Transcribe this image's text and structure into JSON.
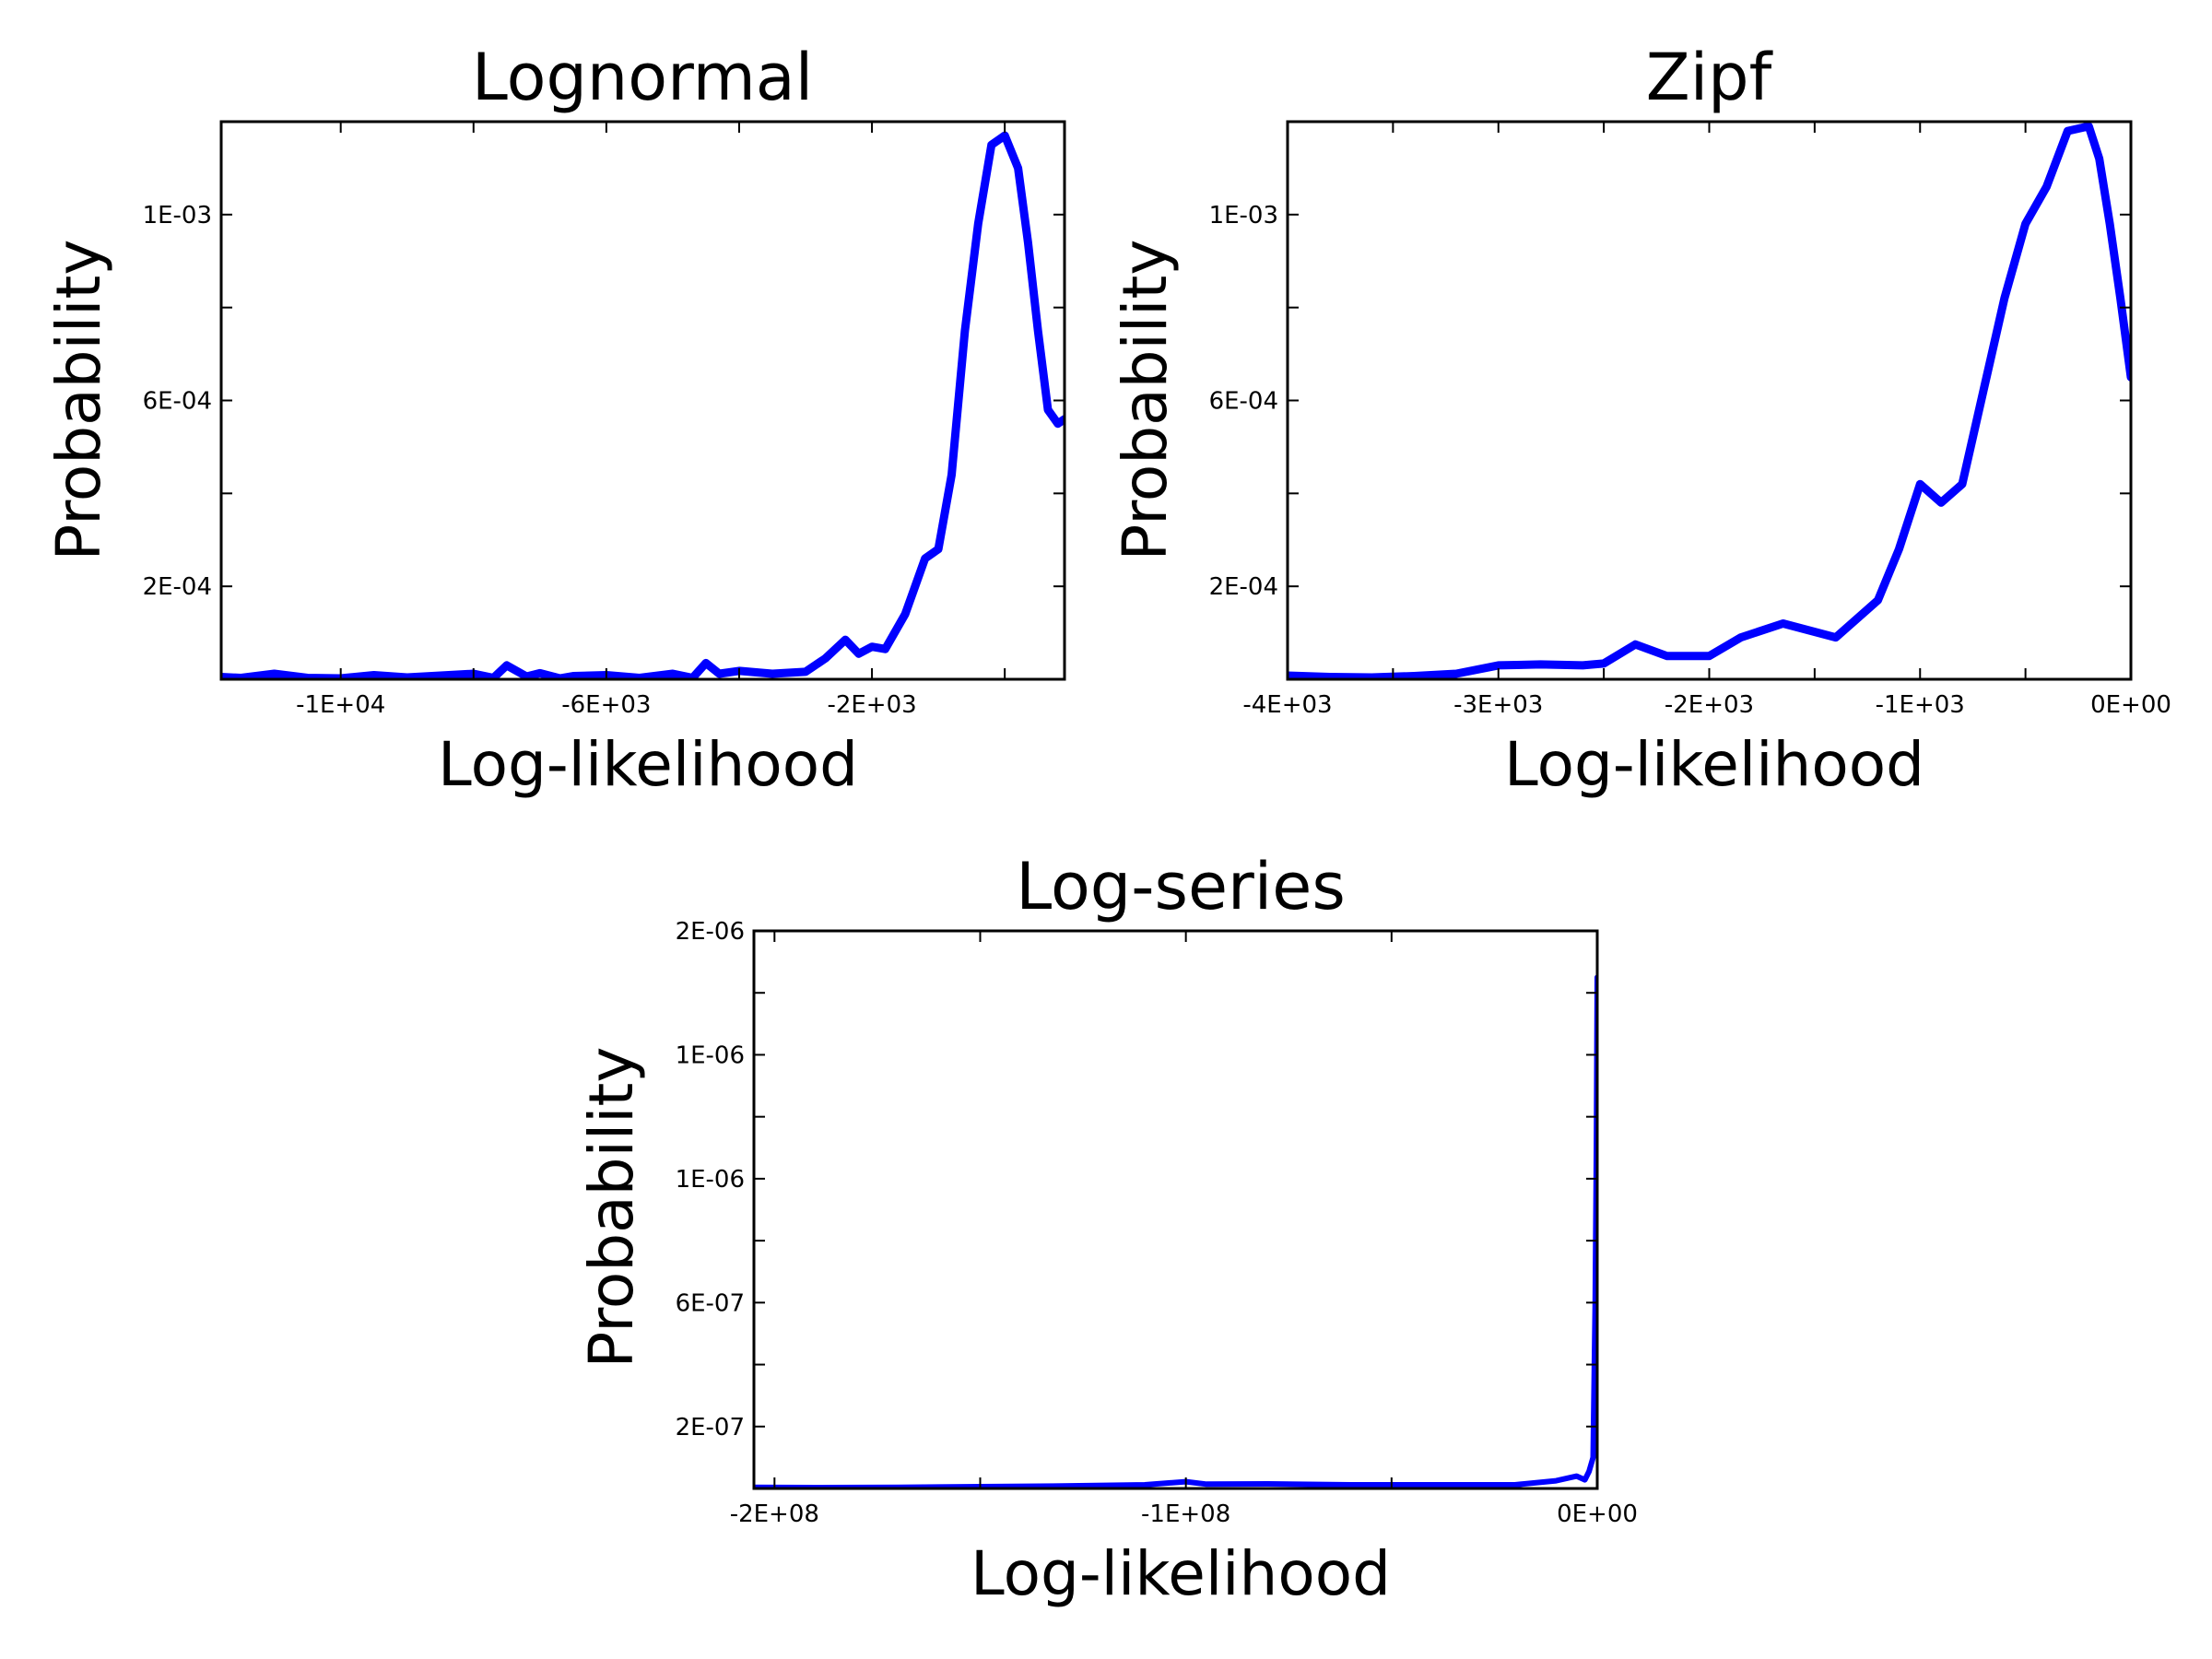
{
  "chart_data": [
    {
      "type": "line",
      "title": "Lognormal",
      "xlabel": "Log-likelihood",
      "ylabel": "Probability",
      "xlim": [
        -11800,
        900
      ],
      "ylim": [
        0,
        0.0012
      ],
      "grid": false,
      "legend": "none",
      "xticks": [
        {
          "value": -10000,
          "label": "-1E+04"
        },
        {
          "value": -6000,
          "label": "-6E+03"
        },
        {
          "value": -2000,
          "label": "-2E+03"
        }
      ],
      "xminor": [
        -12000,
        -8000,
        -4000,
        0
      ],
      "yticks": [
        {
          "value": 0.0002,
          "label": "2E-04"
        },
        {
          "value": 0.0006,
          "label": "6E-04"
        },
        {
          "value": 0.001,
          "label": "1E-03"
        }
      ],
      "yminor": [
        0.0004,
        0.0008
      ],
      "color": "#0000ff",
      "series": [
        {
          "x": [
            -11800,
            -11500,
            -11000,
            -10500,
            -10000,
            -9500,
            -9000,
            -8500,
            -8000,
            -7700,
            -7500,
            -7200,
            -7000,
            -6700,
            -6500,
            -6000,
            -5500,
            -5000,
            -4700,
            -4500,
            -4300,
            -4000,
            -3500,
            -3000,
            -2700,
            -2400,
            -2200,
            -2000,
            -1800,
            -1500,
            -1200,
            -1000,
            -800,
            -600,
            -400,
            -200,
            0,
            200,
            350,
            500,
            650,
            800,
            900
          ],
          "y": [
            5e-06,
            3e-06,
            1.2e-05,
            3e-06,
            2e-06,
            9e-06,
            4e-06,
            8e-06,
            1.2e-05,
            3e-06,
            3e-05,
            6e-06,
            1.3e-05,
            2e-06,
            7e-06,
            9e-06,
            3e-06,
            1.2e-05,
            3e-06,
            3.5e-05,
            1.2e-05,
            1.8e-05,
            1.2e-05,
            1.6e-05,
            4.5e-05,
            8.5e-05,
            5.5e-05,
            7e-05,
            6.5e-05,
            0.00014,
            0.00026,
            0.00028,
            0.00044,
            0.00075,
            0.00098,
            0.00115,
            0.00117,
            0.0011,
            0.00094,
            0.00075,
            0.00058,
            0.00055,
            0.00056
          ]
        }
      ]
    },
    {
      "type": "line",
      "title": "Zipf",
      "xlabel": "Log-likelihood",
      "ylabel": "Probability",
      "xlim": [
        -4000,
        0
      ],
      "ylim": [
        0,
        0.0012
      ],
      "grid": false,
      "legend": "none",
      "xticks": [
        {
          "value": -4000,
          "label": "-4E+03"
        },
        {
          "value": -3000,
          "label": "-3E+03"
        },
        {
          "value": -2000,
          "label": "-2E+03"
        },
        {
          "value": -1000,
          "label": "-1E+03"
        },
        {
          "value": 0,
          "label": "0E+00"
        }
      ],
      "xminor": [
        -3500,
        -2500,
        -1500,
        -500
      ],
      "yticks": [
        {
          "value": 0.0002,
          "label": "2E-04"
        },
        {
          "value": 0.0006,
          "label": "6E-04"
        },
        {
          "value": 0.001,
          "label": "1E-03"
        }
      ],
      "yminor": [
        0.0004,
        0.0008
      ],
      "color": "#0000ff",
      "series": [
        {
          "x": [
            -4000,
            -3800,
            -3600,
            -3400,
            -3200,
            -3000,
            -2800,
            -2600,
            -2500,
            -2350,
            -2200,
            -2000,
            -1850,
            -1650,
            -1400,
            -1200,
            -1100,
            -1000,
            -900,
            -800,
            -700,
            -600,
            -500,
            -400,
            -300,
            -200,
            -150,
            -100,
            -50,
            0
          ],
          "y": [
            8e-06,
            5e-06,
            4e-06,
            7e-06,
            1.2e-05,
            3e-05,
            3.2e-05,
            3e-05,
            3.4e-05,
            7.5e-05,
            5e-05,
            5e-05,
            9e-05,
            0.00012,
            9e-05,
            0.00017,
            0.00028,
            0.00042,
            0.00038,
            0.00042,
            0.00062,
            0.00082,
            0.00098,
            0.00106,
            0.00118,
            0.00119,
            0.00112,
            0.00098,
            0.00082,
            0.00065
          ]
        }
      ]
    },
    {
      "type": "line",
      "title": "Log-series",
      "xlabel": "Log-likelihood",
      "ylabel": "Probability",
      "xlim": [
        -205000000,
        0
      ],
      "ylim": [
        0,
        1.8e-06
      ],
      "grid": false,
      "legend": "none",
      "xticks": [
        {
          "value": -200000000,
          "label": "-2E+08"
        },
        {
          "value": -100000000,
          "label": "-1E+08"
        },
        {
          "value": 0,
          "label": "0E+00"
        }
      ],
      "xminor": [
        -150000000,
        -50000000
      ],
      "yticks": [
        {
          "value": 2e-07,
          "label": "2E-07"
        },
        {
          "value": 6e-07,
          "label": "6E-07"
        },
        {
          "value": 1e-06,
          "label": "1E-06"
        },
        {
          "value": 1.4e-06,
          "label": "1E-06"
        },
        {
          "value": 1.8e-06,
          "label": "2E-06"
        }
      ],
      "yminor": [
        4e-07,
        8e-07,
        1.2e-06,
        1.6e-06
      ],
      "color": "#0000ff",
      "series": [
        {
          "x": [
            -205000000,
            -190000000,
            -170000000,
            -150000000,
            -130000000,
            -110000000,
            -100000000,
            -95000000,
            -80000000,
            -60000000,
            -40000000,
            -20000000,
            -10000000,
            -5000000,
            -3000000,
            -2000000,
            -1000000,
            -500000,
            -200000,
            0
          ],
          "y": [
            4e-09,
            3e-09,
            4e-09,
            6e-09,
            8e-09,
            1.2e-08,
            2.2e-08,
            1.4e-08,
            1.5e-08,
            1.2e-08,
            1.2e-08,
            1.2e-08,
            2.5e-08,
            4e-08,
            2.8e-08,
            5.5e-08,
            1e-07,
            6e-07,
            1.1e-06,
            1.65e-06
          ]
        }
      ]
    }
  ]
}
